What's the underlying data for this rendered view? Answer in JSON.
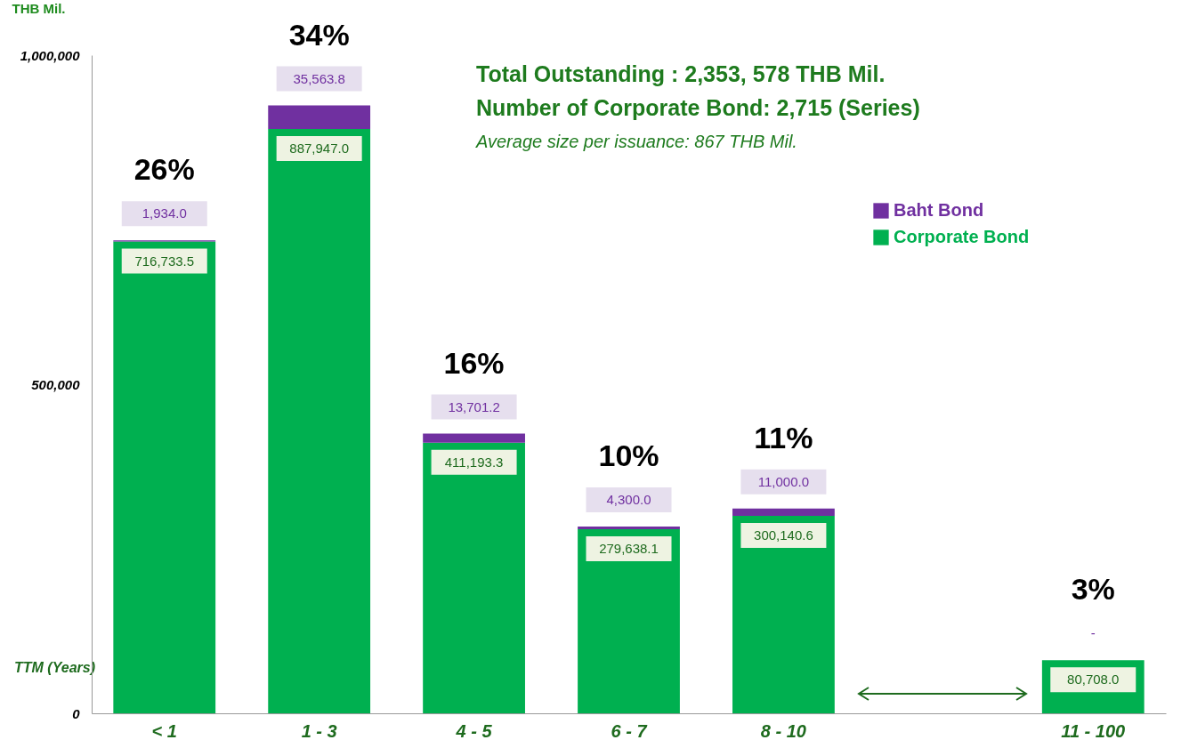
{
  "chart_data": {
    "type": "bar",
    "stacked": true,
    "ylabel": "THB Mil.",
    "xlabel": "TTM (Years)",
    "categories": [
      "< 1",
      "1 - 3",
      "4 - 5",
      "6 - 7",
      "8 - 10",
      null,
      "11 - 100"
    ],
    "series": [
      {
        "name": "Corporate Bond",
        "color": "#00b050",
        "values": [
          716733.5,
          887947.0,
          411193.3,
          279638.1,
          300140.6,
          null,
          80708.0
        ],
        "value_labels": [
          "716,733.5",
          "887,947.0",
          "411,193.3",
          "279,638.1",
          "300,140.6",
          null,
          "80,708.0"
        ]
      },
      {
        "name": "Baht Bond",
        "color": "#7030a0",
        "values": [
          1934.0,
          35563.8,
          13701.2,
          4300.0,
          11000.0,
          null,
          null
        ],
        "value_labels": [
          "1,934.0",
          "35,563.8",
          "13,701.2",
          "4,300.0",
          "11,000.0",
          null,
          "-"
        ]
      }
    ],
    "ylim": [
      0,
      1000000
    ],
    "yticks": [
      {
        "value": 0,
        "label": "0"
      },
      {
        "value": 500000,
        "label": "500,000"
      },
      {
        "value": 1000000,
        "label": "1,000,000"
      }
    ],
    "legend": "right",
    "grid": false,
    "annotations": [
      {
        "text": "26%",
        "x": "< 1",
        "y": 718667.5
      },
      {
        "text": "34%",
        "x": "1 - 3",
        "y": 923510.8
      },
      {
        "text": "16%",
        "x": "4 - 5",
        "y": 424894.5
      },
      {
        "text": "10%",
        "x": "6 - 7",
        "y": 283938.1
      },
      {
        "text": "11%",
        "x": "8 - 10",
        "y": 311140.6
      },
      {
        "text": "3%",
        "x": "11 - 100",
        "y": 80708.0
      },
      "Total Outstanding : 2,353, 578 THB Mil.",
      "Number of Corporate Bond: 2,715 (Series)",
      "Average size per issuance: 867 THB Mil."
    ]
  }
}
